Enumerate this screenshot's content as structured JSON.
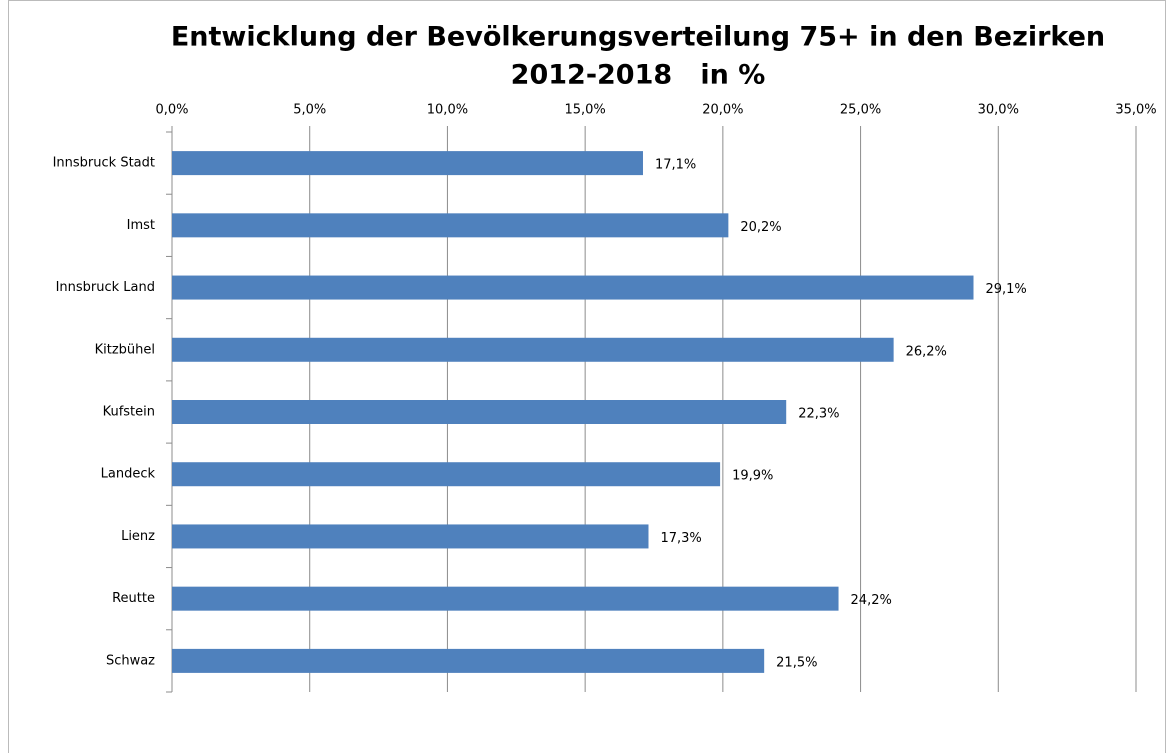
{
  "chart_data": {
    "type": "bar",
    "orientation": "horizontal",
    "title": "Entwicklung der Bevölkerungsverteilung 75+ in den Bezirken",
    "subtitle": "2012-2018   in %",
    "categories": [
      "Innsbruck Stadt",
      "Imst",
      "Innsbruck Land",
      "Kitzbühel",
      "Kufstein",
      "Landeck",
      "Lienz",
      "Reutte",
      "Schwaz"
    ],
    "values": [
      17.1,
      20.2,
      29.1,
      26.2,
      22.3,
      19.9,
      17.3,
      24.2,
      21.5
    ],
    "value_labels": [
      "17,1%",
      "20,2%",
      "29,1%",
      "26,2%",
      "22,3%",
      "19,9%",
      "17,3%",
      "24,2%",
      "21,5%"
    ],
    "color": "#4f81bd",
    "xlim": [
      0,
      35
    ],
    "xticks": [
      {
        "value": 0,
        "label": "0,0%"
      },
      {
        "value": 5,
        "label": "5,0%"
      },
      {
        "value": 10,
        "label": "10,0%"
      },
      {
        "value": 15,
        "label": "15,0%"
      },
      {
        "value": 20,
        "label": "20,0%"
      },
      {
        "value": 25,
        "label": "25,0%"
      },
      {
        "value": 30,
        "label": "30,0%"
      },
      {
        "value": 35,
        "label": "35,0%"
      }
    ],
    "grid": true
  }
}
